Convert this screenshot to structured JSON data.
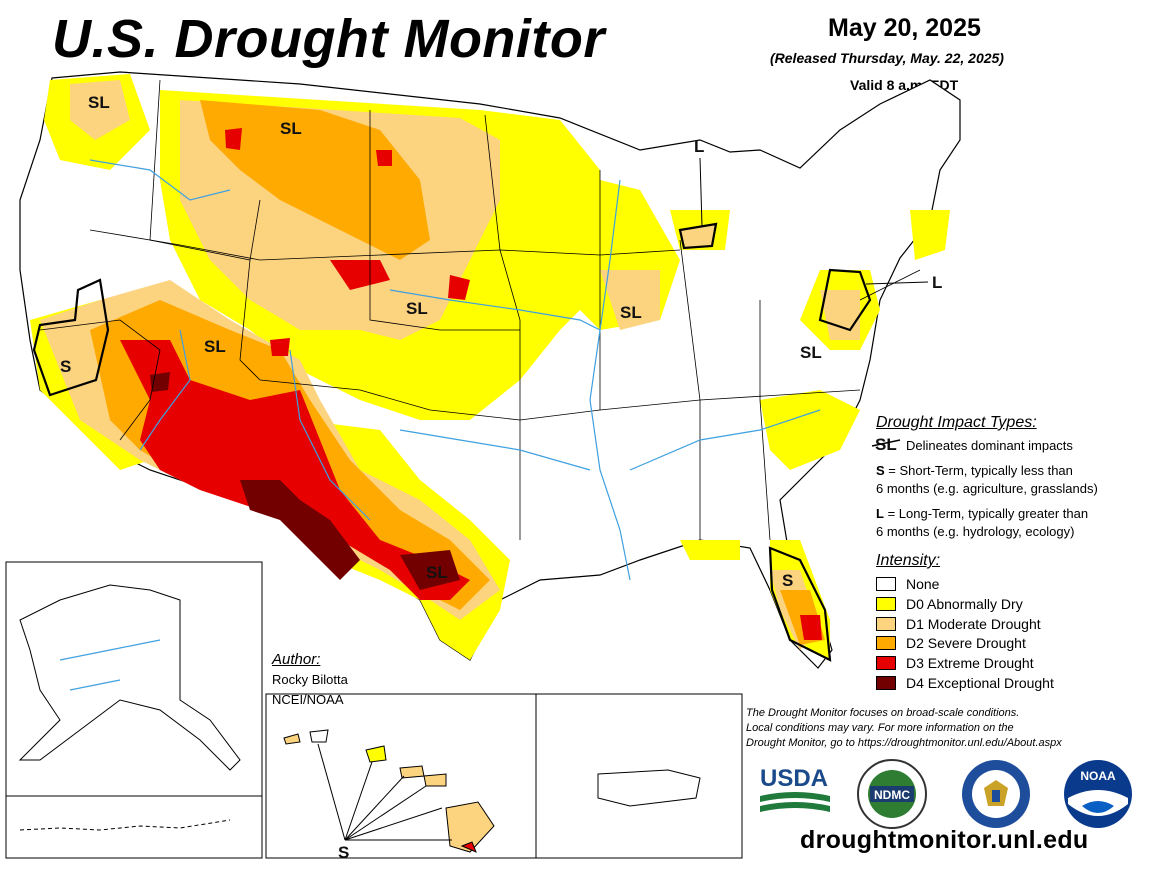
{
  "header": {
    "title": "U.S. Drought Monitor",
    "date": "May 20, 2025",
    "released": "(Released Thursday, May. 22, 2025)",
    "valid": "Valid 8 a.m. EDT"
  },
  "impact_types": {
    "title": "Drought Impact Types:",
    "symbol_line": "Delineates dominant impacts",
    "items": [
      {
        "symbol": "S",
        "text1": " = Short-Term, typically less than",
        "text2": "6 months (e.g. agriculture, grasslands)"
      },
      {
        "symbol": "L",
        "text1": " = Long-Term, typically greater than",
        "text2": "6 months (e.g. hydrology, ecology)"
      }
    ]
  },
  "intensity": {
    "title": "Intensity:",
    "levels": [
      {
        "label": "None",
        "color": "#ffffff"
      },
      {
        "label": "D0 Abnormally Dry",
        "color": "#ffff00"
      },
      {
        "label": "D1 Moderate Drought",
        "color": "#fcd37f"
      },
      {
        "label": "D2 Severe Drought",
        "color": "#ffaa00"
      },
      {
        "label": "D3 Extreme Drought",
        "color": "#e60000"
      },
      {
        "label": "D4 Exceptional Drought",
        "color": "#730000"
      }
    ]
  },
  "author": {
    "title": "Author:",
    "name": "Rocky Bilotta",
    "org": "NCEI/NOAA"
  },
  "disclaimer": {
    "line1": "The Drought Monitor focuses on broad-scale conditions.",
    "line2": "Local conditions may vary. For more information on the",
    "line3": "Drought Monitor, go to https://droughtmonitor.unl.edu/About.aspx"
  },
  "map_labels": {
    "sl_nw": "SL",
    "sl_north": "SL",
    "sl_plains": "SL",
    "sl_utah": "SL",
    "sl_mid": "SL",
    "sl_va": "SL",
    "sl_tx": "SL",
    "s_ca": "S",
    "s_fl": "S",
    "s_hi": "S",
    "l_mi": "L",
    "l_ne": "L",
    "legend_sl": "SL"
  },
  "logos": {
    "usda": "USDA",
    "ndmc": "NDMC",
    "noaa": "NOAA"
  },
  "url": "droughtmonitor.unl.edu"
}
